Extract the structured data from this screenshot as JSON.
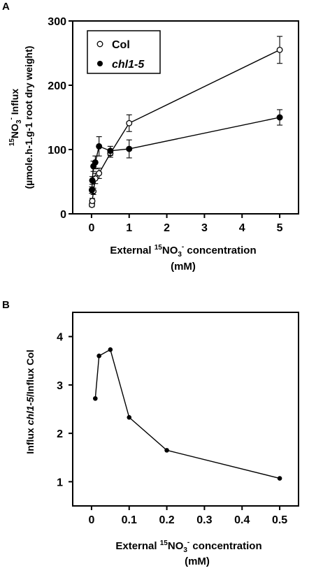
{
  "chart_data": [
    {
      "panel": "A",
      "type": "scatter",
      "xlabel_line1_parts": [
        "External ",
        "15",
        "NO",
        "3",
        "-",
        " concentration"
      ],
      "xlabel_line2": "(mM)",
      "ylabel_line1_parts": [
        "15",
        "NO",
        "3",
        "-",
        " Influx"
      ],
      "ylabel_line2": "(µmole.h-1.g-1 root dry weight)",
      "xlim": [
        -0.5,
        5.5
      ],
      "ylim": [
        0,
        300
      ],
      "xticks": [
        0,
        1,
        2,
        3,
        4,
        5
      ],
      "yticks": [
        0,
        100,
        200,
        300
      ],
      "legend_position": "top-left",
      "series": [
        {
          "name": "Col",
          "marker": "open-circle",
          "points": [
            {
              "x": 0.01,
              "y": 14,
              "err": 3
            },
            {
              "x": 0.02,
              "y": 20,
              "err": 4
            },
            {
              "x": 0.05,
              "y": 35,
              "err": 5
            },
            {
              "x": 0.1,
              "y": 55,
              "err": 8
            },
            {
              "x": 0.2,
              "y": 63,
              "err": 8
            },
            {
              "x": 0.5,
              "y": 94,
              "err": 6
            },
            {
              "x": 1.0,
              "y": 141,
              "err": 13
            },
            {
              "x": 5.0,
              "y": 255,
              "err": 21
            }
          ]
        },
        {
          "name": "chl1-5",
          "marker": "filled-circle",
          "points": [
            {
              "x": 0.01,
              "y": 37,
              "err": 5
            },
            {
              "x": 0.02,
              "y": 52,
              "err": 6
            },
            {
              "x": 0.05,
              "y": 74,
              "err": 8
            },
            {
              "x": 0.1,
              "y": 80,
              "err": 10
            },
            {
              "x": 0.2,
              "y": 105,
              "err": 15
            },
            {
              "x": 0.5,
              "y": 98,
              "err": 7
            },
            {
              "x": 1.0,
              "y": 101,
              "err": 14
            },
            {
              "x": 5.0,
              "y": 150,
              "err": 12
            }
          ]
        }
      ]
    },
    {
      "panel": "B",
      "type": "line",
      "xlabel_line1_parts": [
        "External ",
        "15",
        "NO",
        "3",
        "-",
        " concentration"
      ],
      "xlabel_line2": "(mM)",
      "ylabel_parts": [
        "Influx ",
        "chl1-5",
        "/Influx Col"
      ],
      "xlim": [
        -0.05,
        0.55
      ],
      "ylim": [
        0.5,
        4.5
      ],
      "xticks": [
        0,
        0.1,
        0.2,
        0.3,
        0.4,
        0.5
      ],
      "xtick_labels": [
        "0",
        "0.1",
        "0.2",
        "0.3",
        "0.4",
        "0.5"
      ],
      "yticks": [
        1,
        2,
        3,
        4
      ],
      "series": [
        {
          "marker": "filled-circle",
          "x": [
            0.01,
            0.02,
            0.05,
            0.1,
            0.2,
            0.5
          ],
          "y": [
            2.72,
            3.6,
            3.73,
            2.33,
            1.65,
            1.07
          ]
        }
      ]
    }
  ]
}
